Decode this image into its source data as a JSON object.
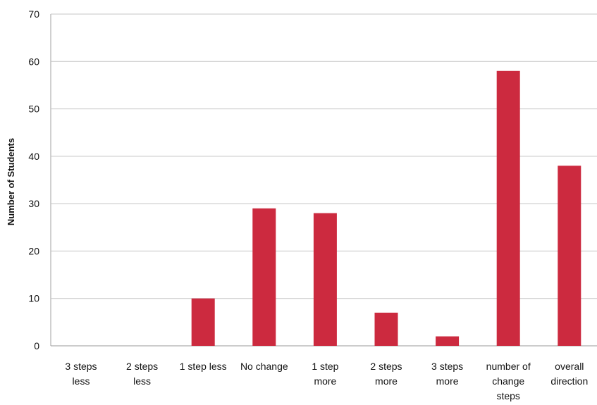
{
  "chart_data": {
    "type": "bar",
    "title": "",
    "xlabel": "",
    "ylabel": "Number of Students",
    "ylim": [
      0,
      70
    ],
    "yticks": [
      0,
      10,
      20,
      30,
      40,
      50,
      60,
      70
    ],
    "grid": true,
    "legend": "none",
    "bar_color": "#cc2a3f",
    "categories": [
      "3 steps less",
      "2 steps less",
      "1 step less",
      "No change",
      "1 step more",
      "2 steps more",
      "3 steps more",
      "number of change steps",
      "overall direction"
    ],
    "category_label_lines": [
      [
        "3 steps",
        "less"
      ],
      [
        "2 steps",
        "less"
      ],
      [
        "1 step less"
      ],
      [
        "No change"
      ],
      [
        "1 step",
        "more"
      ],
      [
        "2 steps",
        "more"
      ],
      [
        "3 steps",
        "more"
      ],
      [
        "number of",
        "change",
        "steps"
      ],
      [
        "overall",
        "direction"
      ]
    ],
    "values": [
      0,
      0,
      10,
      29,
      28,
      7,
      2,
      58,
      38
    ]
  }
}
